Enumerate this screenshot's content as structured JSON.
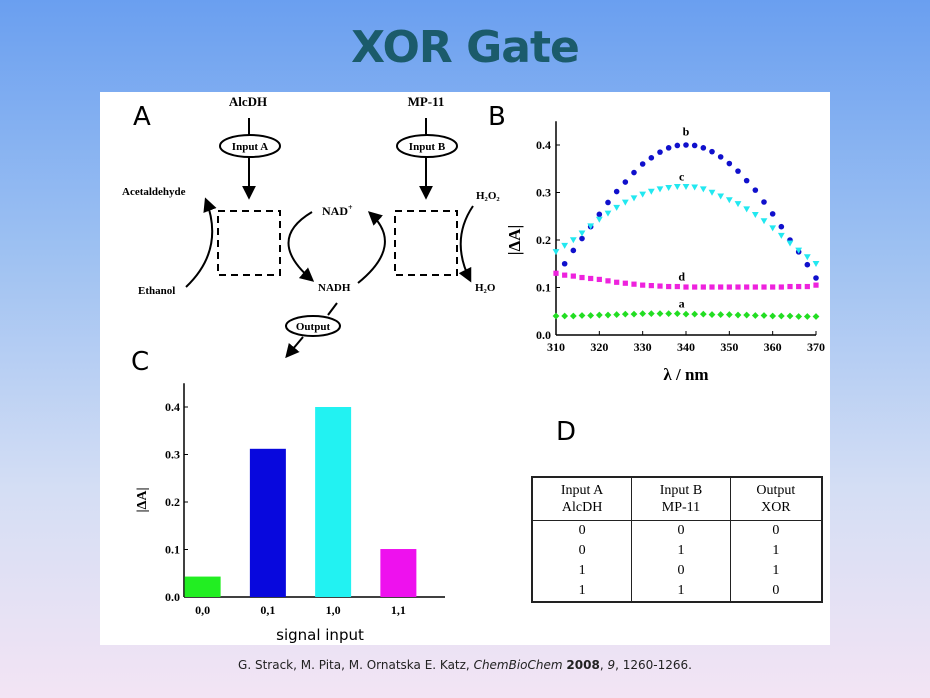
{
  "title": "XOR Gate",
  "citation": {
    "authors": "G. Strack, M. Pita, M. Ornatska  E. Katz, ",
    "journal": "ChemBioChem",
    "year": "2008",
    "volume": "9",
    "pages": ", 1260-1266."
  },
  "colors": {
    "title": "#1b5b6b",
    "a": "#22dd22",
    "b": "#1010cc",
    "c": "#22e8f0",
    "d": "#ee22dd"
  },
  "panel_a": {
    "letter": "A",
    "input_a_enzyme": "AlcDH",
    "input_b_enzyme": "MP-11",
    "input_a": "Input A",
    "input_b": "Input B",
    "output": "Output",
    "acetaldehyde": "Acetaldehyde",
    "ethanol": "Ethanol",
    "nad": "NAD",
    "nad_sup": "+",
    "nadh": "NADH",
    "h2o2": "H₂O₂",
    "h2o": "H₂O"
  },
  "chart_data": [
    {
      "panel": "B",
      "type": "scatter",
      "xlabel": "λ / nm",
      "ylabel": "|ΔA|",
      "xlim": [
        310,
        370
      ],
      "ylim": [
        0,
        0.45
      ],
      "xticks": [
        "310",
        "320",
        "330",
        "340",
        "350",
        "360",
        "370"
      ],
      "yticks": [
        "0.0",
        "0.1",
        "0.2",
        "0.3",
        "0.4"
      ],
      "series": [
        {
          "name": "a",
          "marker": "diamond",
          "color": "#22dd22",
          "x": [
            310,
            312,
            314,
            316,
            318,
            320,
            322,
            324,
            326,
            328,
            330,
            332,
            334,
            336,
            338,
            340,
            342,
            344,
            346,
            348,
            350,
            352,
            354,
            356,
            358,
            360,
            362,
            364,
            366,
            368,
            370
          ],
          "y": [
            0.04,
            0.04,
            0.04,
            0.041,
            0.041,
            0.042,
            0.042,
            0.043,
            0.044,
            0.044,
            0.045,
            0.045,
            0.045,
            0.045,
            0.045,
            0.044,
            0.044,
            0.044,
            0.043,
            0.043,
            0.043,
            0.042,
            0.042,
            0.041,
            0.041,
            0.04,
            0.04,
            0.04,
            0.039,
            0.039,
            0.039
          ]
        },
        {
          "name": "b",
          "marker": "circle",
          "color": "#1010cc",
          "x": [
            312,
            314,
            316,
            318,
            320,
            322,
            324,
            326,
            328,
            330,
            332,
            334,
            336,
            338,
            340,
            342,
            344,
            346,
            348,
            350,
            352,
            354,
            356,
            358,
            360,
            362,
            364,
            366,
            368,
            370
          ],
          "y": [
            0.15,
            0.178,
            0.203,
            0.228,
            0.254,
            0.279,
            0.302,
            0.322,
            0.342,
            0.36,
            0.373,
            0.385,
            0.394,
            0.399,
            0.4,
            0.399,
            0.394,
            0.386,
            0.375,
            0.361,
            0.345,
            0.325,
            0.305,
            0.28,
            0.255,
            0.228,
            0.2,
            0.175,
            0.148,
            0.12
          ]
        },
        {
          "name": "c",
          "marker": "triangle-down",
          "color": "#22e8f0",
          "x": [
            310,
            312,
            314,
            316,
            318,
            320,
            322,
            324,
            326,
            328,
            330,
            332,
            334,
            336,
            338,
            340,
            342,
            344,
            346,
            348,
            350,
            352,
            354,
            356,
            358,
            360,
            362,
            364,
            366,
            368,
            370
          ],
          "y": [
            0.175,
            0.188,
            0.2,
            0.214,
            0.229,
            0.243,
            0.256,
            0.268,
            0.279,
            0.288,
            0.296,
            0.302,
            0.307,
            0.31,
            0.312,
            0.312,
            0.311,
            0.307,
            0.3,
            0.292,
            0.284,
            0.276,
            0.265,
            0.253,
            0.24,
            0.225,
            0.209,
            0.193,
            0.178,
            0.164,
            0.15
          ]
        },
        {
          "name": "d",
          "marker": "square",
          "color": "#ee22dd",
          "x": [
            310,
            312,
            314,
            316,
            318,
            320,
            322,
            324,
            326,
            328,
            330,
            332,
            334,
            336,
            338,
            340,
            342,
            344,
            346,
            348,
            350,
            352,
            354,
            356,
            358,
            360,
            362,
            364,
            366,
            368,
            370
          ],
          "y": [
            0.13,
            0.126,
            0.124,
            0.121,
            0.119,
            0.117,
            0.114,
            0.111,
            0.109,
            0.107,
            0.105,
            0.104,
            0.103,
            0.102,
            0.102,
            0.101,
            0.101,
            0.101,
            0.101,
            0.101,
            0.101,
            0.101,
            0.101,
            0.101,
            0.101,
            0.101,
            0.101,
            0.102,
            0.102,
            0.102,
            0.105
          ]
        }
      ],
      "labels": [
        {
          "text": "b",
          "x": 340,
          "y": 0.42
        },
        {
          "text": "c",
          "x": 339,
          "y": 0.325
        },
        {
          "text": "d",
          "x": 339,
          "y": 0.115
        },
        {
          "text": "a",
          "x": 339,
          "y": 0.058
        }
      ]
    },
    {
      "panel": "C",
      "type": "bar",
      "xlabel": "signal input",
      "ylabel": "|ΔA|",
      "ylim": [
        0,
        0.45
      ],
      "categories": [
        "0,0",
        "0,1",
        "1,0",
        "1,1"
      ],
      "values": [
        0.043,
        0.312,
        0.4,
        0.101
      ],
      "colors": [
        "#22ee22",
        "#0808dd",
        "#22f2f2",
        "#ee11ee"
      ],
      "yticks": [
        "0.0",
        "0.1",
        "0.2",
        "0.3",
        "0.4"
      ]
    }
  ],
  "panel_letters": {
    "b": "B",
    "c": "C",
    "d": "D"
  },
  "truth_table": {
    "headers": [
      [
        "Input A",
        "AlcDH"
      ],
      [
        "Input B",
        "MP-11"
      ],
      [
        "Output",
        "XOR"
      ]
    ],
    "rows": [
      [
        "0",
        "0",
        "0"
      ],
      [
        "0",
        "1",
        "1"
      ],
      [
        "1",
        "0",
        "1"
      ],
      [
        "1",
        "1",
        "0"
      ]
    ]
  }
}
